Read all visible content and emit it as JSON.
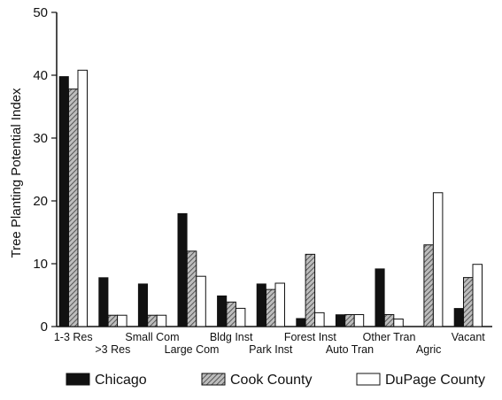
{
  "chart_data": {
    "type": "bar",
    "title": "",
    "xlabel": "",
    "ylabel": "Tree Planting Potential Index",
    "ylim": [
      0,
      50
    ],
    "yticks": [
      0,
      10,
      20,
      30,
      40,
      50
    ],
    "grid": false,
    "legend_position": "bottom",
    "categories": [
      "1-3 Res",
      ">3 Res",
      "Small Com",
      "Large Com",
      "Bldg Inst",
      "Park Inst",
      "Forest Inst",
      "Auto Tran",
      "Other Tran",
      "Agric",
      "Vacant"
    ],
    "series": [
      {
        "name": "Chicago",
        "values": [
          39.8,
          7.8,
          6.8,
          18.0,
          4.9,
          6.8,
          1.3,
          1.9,
          9.2,
          0.0,
          2.9
        ],
        "color": "#111111",
        "pattern": "solid"
      },
      {
        "name": "Cook County",
        "values": [
          37.8,
          1.8,
          1.8,
          12.0,
          3.9,
          5.9,
          11.5,
          1.9,
          1.9,
          13.0,
          7.8
        ],
        "color": "#888888",
        "pattern": "hatch"
      },
      {
        "name": "DuPage County",
        "values": [
          40.8,
          1.8,
          1.8,
          8.0,
          2.9,
          6.9,
          2.2,
          1.9,
          1.2,
          21.3,
          9.9
        ],
        "color": "#ffffff",
        "pattern": "outline"
      }
    ]
  }
}
